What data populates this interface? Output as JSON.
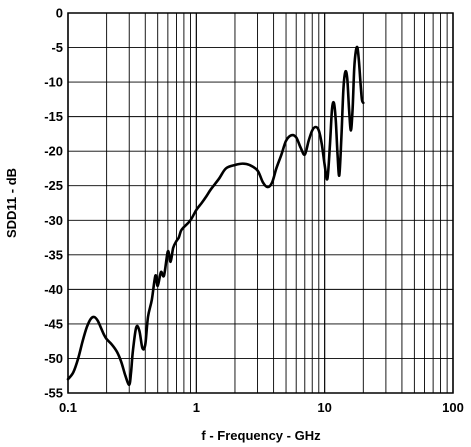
{
  "chart_data": {
    "type": "line",
    "title": "",
    "xlabel": "f - Frequency - GHz",
    "ylabel": "SDD11 - dB",
    "xscale": "log",
    "xlim": [
      0.1,
      100
    ],
    "ylim": [
      -55,
      0
    ],
    "grid": true,
    "x_ticks": [
      0.1,
      1,
      10,
      100
    ],
    "x_tick_labels": [
      "0.1",
      "1",
      "10",
      "100"
    ],
    "y_ticks": [
      0,
      -5,
      -10,
      -15,
      -20,
      -25,
      -30,
      -35,
      -40,
      -45,
      -50,
      -55
    ],
    "y_tick_labels": [
      "0",
      "-5",
      "-10",
      "-15",
      "-20",
      "-25",
      "-30",
      "-35",
      "-40",
      "-45",
      "-50",
      "-55"
    ],
    "colors": {
      "line": "#000000",
      "grid": "#000000",
      "background": "#ffffff"
    },
    "series": [
      {
        "x": [
          0.1,
          0.11,
          0.12,
          0.13,
          0.14,
          0.15,
          0.16,
          0.17,
          0.18,
          0.19,
          0.2,
          0.22,
          0.24,
          0.26,
          0.28,
          0.3,
          0.31,
          0.32,
          0.34,
          0.36,
          0.38,
          0.4,
          0.42,
          0.45,
          0.48,
          0.5,
          0.53,
          0.56,
          0.6,
          0.63,
          0.66,
          0.7,
          0.73,
          0.76,
          0.8,
          0.9,
          1.0,
          1.1,
          1.2,
          1.3,
          1.5,
          1.7,
          2.0,
          2.3,
          2.6,
          3.0,
          3.3,
          3.6,
          3.9,
          4.2,
          4.6,
          5.0,
          5.5,
          6.0,
          6.5,
          7.0,
          7.5,
          8.0,
          8.5,
          9.0,
          9.5,
          10.0,
          10.5,
          11.0,
          11.4,
          11.8,
          12.2,
          12.6,
          13.0,
          13.5,
          14.0,
          14.5,
          15.0,
          15.5,
          16.0,
          16.5,
          17.0,
          17.5,
          18.0,
          18.5,
          19.0,
          19.5,
          20.0
        ],
        "values": [
          -53.0,
          -52.0,
          -50.0,
          -47.5,
          -45.5,
          -44.3,
          -44.0,
          -44.5,
          -45.5,
          -46.5,
          -47.2,
          -48.0,
          -49.0,
          -50.5,
          -52.5,
          -53.8,
          -52.0,
          -49.0,
          -45.5,
          -46.0,
          -48.5,
          -48.0,
          -44.0,
          -41.5,
          -38.0,
          -39.5,
          -37.5,
          -38.0,
          -34.5,
          -36.0,
          -34.0,
          -33.0,
          -32.5,
          -31.5,
          -31.0,
          -30.0,
          -28.5,
          -27.5,
          -26.5,
          -25.5,
          -24.0,
          -22.5,
          -22.0,
          -21.8,
          -22.0,
          -22.8,
          -24.5,
          -25.2,
          -24.5,
          -22.5,
          -20.5,
          -18.5,
          -17.7,
          -18.0,
          -19.5,
          -20.5,
          -18.5,
          -17.0,
          -16.5,
          -17.0,
          -19.0,
          -22.0,
          -24.0,
          -19.0,
          -14.0,
          -13.0,
          -15.5,
          -20.5,
          -23.5,
          -18.0,
          -11.0,
          -8.5,
          -9.5,
          -14.0,
          -17.0,
          -14.0,
          -8.0,
          -5.5,
          -5.0,
          -7.0,
          -10.0,
          -12.5,
          -13.0
        ]
      }
    ]
  }
}
